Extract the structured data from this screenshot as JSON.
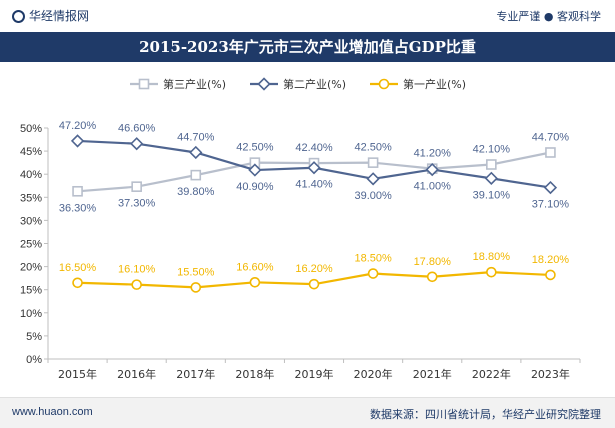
{
  "header": {
    "logo_text": "华经情报网",
    "tagline": "专业严谨 ● 客观科学"
  },
  "title": "2015-2023年广元市三次产业增加值占GDP比重",
  "footer": {
    "website": "www.huaon.com",
    "source": "数据来源：四川省统计局，华经产业研究院整理"
  },
  "chart_data": {
    "type": "line",
    "categories": [
      "2015年",
      "2016年",
      "2017年",
      "2018年",
      "2019年",
      "2020年",
      "2021年",
      "2022年",
      "2023年"
    ],
    "ylim": [
      0,
      50
    ],
    "yticks": [
      "0%",
      "5%",
      "10%",
      "15%",
      "20%",
      "25%",
      "30%",
      "35%",
      "40%",
      "45%",
      "50%"
    ],
    "grid": false,
    "legend_position": "top",
    "series": [
      {
        "name": "第三产业(%)",
        "color": "#b8bfcc",
        "marker": "square",
        "values": [
          36.3,
          37.3,
          39.8,
          42.5,
          42.4,
          42.5,
          41.2,
          42.1,
          44.7
        ],
        "labels": [
          "36.30%",
          "37.30%",
          "39.80%",
          "42.50%",
          "42.40%",
          "42.50%",
          "41.20%",
          "42.10%",
          "44.70%"
        ]
      },
      {
        "name": "第二产业(%)",
        "color": "#4f6590",
        "marker": "diamond",
        "values": [
          47.2,
          46.6,
          44.7,
          40.9,
          41.4,
          39.0,
          41.0,
          39.1,
          37.1
        ],
        "labels": [
          "47.20%",
          "46.60%",
          "44.70%",
          "40.90%",
          "41.40%",
          "39.00%",
          "41.00%",
          "39.10%",
          "37.10%"
        ]
      },
      {
        "name": "第一产业(%)",
        "color": "#f2b700",
        "marker": "circle",
        "values": [
          16.5,
          16.1,
          15.5,
          16.6,
          16.2,
          18.5,
          17.8,
          18.8,
          18.2
        ],
        "labels": [
          "16.50%",
          "16.10%",
          "15.50%",
          "16.60%",
          "16.20%",
          "18.50%",
          "17.80%",
          "18.80%",
          "18.20%"
        ]
      }
    ]
  }
}
